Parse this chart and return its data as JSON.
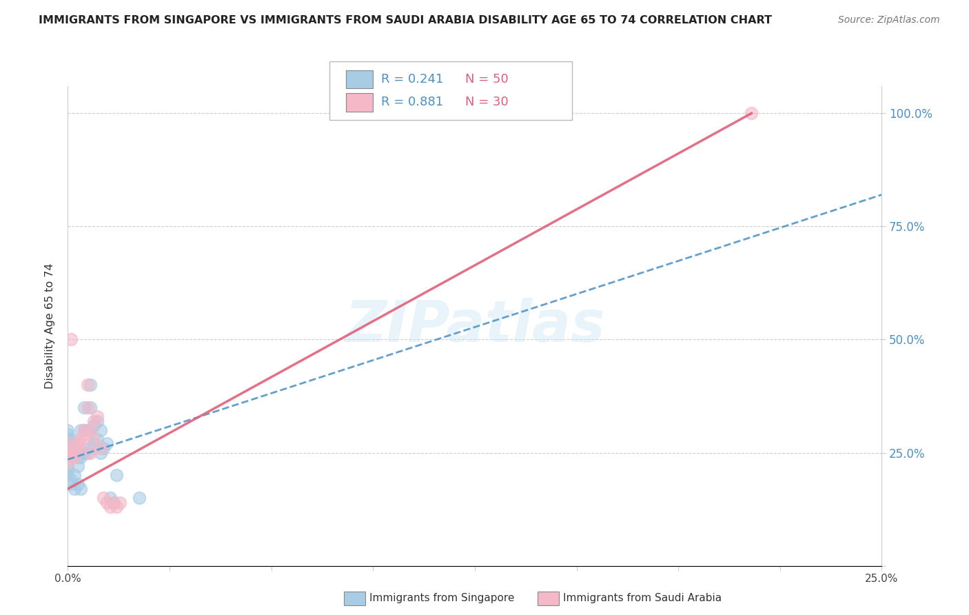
{
  "title": "IMMIGRANTS FROM SINGAPORE VS IMMIGRANTS FROM SAUDI ARABIA DISABILITY AGE 65 TO 74 CORRELATION CHART",
  "source": "Source: ZipAtlas.com",
  "ylabel": "Disability Age 65 to 74",
  "legend1_r": "R = 0.241",
  "legend1_n": "N = 50",
  "legend2_r": "R = 0.881",
  "legend2_n": "N = 30",
  "color_blue": "#a8cce4",
  "color_pink": "#f4b8c8",
  "color_blue_line": "#4a90c4",
  "color_pink_line": "#e0607a",
  "color_rn_blue": "#4a90c4",
  "color_rn_pink": "#e0607a",
  "watermark": "ZIPatlas",
  "scatter_blue": [
    [
      0.0,
      0.27
    ],
    [
      0.0,
      0.28
    ],
    [
      0.0,
      0.29
    ],
    [
      0.0,
      0.3
    ],
    [
      0.0,
      0.26
    ],
    [
      0.001,
      0.25
    ],
    [
      0.001,
      0.26
    ],
    [
      0.001,
      0.27
    ],
    [
      0.001,
      0.28
    ],
    [
      0.002,
      0.24
    ],
    [
      0.002,
      0.25
    ],
    [
      0.002,
      0.26
    ],
    [
      0.002,
      0.27
    ],
    [
      0.003,
      0.24
    ],
    [
      0.003,
      0.25
    ],
    [
      0.003,
      0.26
    ],
    [
      0.004,
      0.24
    ],
    [
      0.004,
      0.25
    ],
    [
      0.004,
      0.3
    ],
    [
      0.005,
      0.25
    ],
    [
      0.005,
      0.3
    ],
    [
      0.005,
      0.35
    ],
    [
      0.006,
      0.25
    ],
    [
      0.006,
      0.3
    ],
    [
      0.007,
      0.26
    ],
    [
      0.007,
      0.3
    ],
    [
      0.007,
      0.35
    ],
    [
      0.007,
      0.4
    ],
    [
      0.008,
      0.27
    ],
    [
      0.008,
      0.31
    ],
    [
      0.009,
      0.28
    ],
    [
      0.009,
      0.32
    ],
    [
      0.01,
      0.25
    ],
    [
      0.01,
      0.3
    ],
    [
      0.011,
      0.26
    ],
    [
      0.012,
      0.27
    ],
    [
      0.013,
      0.15
    ],
    [
      0.014,
      0.14
    ],
    [
      0.015,
      0.2
    ],
    [
      0.0,
      0.22
    ],
    [
      0.0,
      0.21
    ],
    [
      0.0,
      0.2
    ],
    [
      0.001,
      0.19
    ],
    [
      0.001,
      0.18
    ],
    [
      0.002,
      0.17
    ],
    [
      0.002,
      0.2
    ],
    [
      0.003,
      0.18
    ],
    [
      0.003,
      0.22
    ],
    [
      0.004,
      0.17
    ],
    [
      0.022,
      0.15
    ]
  ],
  "scatter_pink": [
    [
      0.0,
      0.25
    ],
    [
      0.0,
      0.26
    ],
    [
      0.0,
      0.27
    ],
    [
      0.0,
      0.23
    ],
    [
      0.001,
      0.24
    ],
    [
      0.001,
      0.25
    ],
    [
      0.002,
      0.25
    ],
    [
      0.002,
      0.24
    ],
    [
      0.003,
      0.26
    ],
    [
      0.003,
      0.27
    ],
    [
      0.004,
      0.27
    ],
    [
      0.004,
      0.28
    ],
    [
      0.005,
      0.3
    ],
    [
      0.005,
      0.29
    ],
    [
      0.006,
      0.35
    ],
    [
      0.006,
      0.4
    ],
    [
      0.007,
      0.3
    ],
    [
      0.007,
      0.25
    ],
    [
      0.008,
      0.32
    ],
    [
      0.008,
      0.28
    ],
    [
      0.009,
      0.33
    ],
    [
      0.01,
      0.26
    ],
    [
      0.011,
      0.15
    ],
    [
      0.012,
      0.14
    ],
    [
      0.013,
      0.13
    ],
    [
      0.014,
      0.14
    ],
    [
      0.015,
      0.13
    ],
    [
      0.016,
      0.14
    ],
    [
      0.001,
      0.5
    ],
    [
      0.21,
      1.0
    ]
  ],
  "blue_trendline_x": [
    0.0,
    0.25
  ],
  "blue_trendline_y": [
    0.235,
    0.82
  ],
  "pink_trendline_x": [
    0.0,
    0.21
  ],
  "pink_trendline_y": [
    0.17,
    1.0
  ],
  "xlim": [
    0.0,
    0.25
  ],
  "ylim": [
    0.0,
    1.06
  ],
  "ytick_vals": [
    0.0,
    0.25,
    0.5,
    0.75,
    1.0
  ],
  "ytick_labels": [
    "",
    "25.0%",
    "50.0%",
    "75.0%",
    "100.0%"
  ],
  "xtick_vals": [
    0.0,
    0.25
  ],
  "xtick_labels": [
    "0.0%",
    "25.0%"
  ],
  "background_color": "#ffffff",
  "grid_color": "#c8c8c8"
}
